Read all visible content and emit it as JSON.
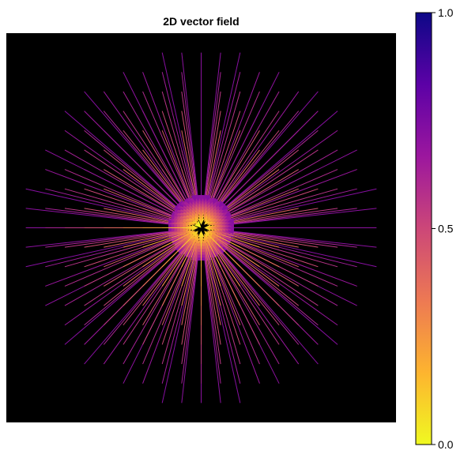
{
  "chart_data": {
    "type": "vector-field",
    "title": "2D vector field",
    "xlabel": "",
    "ylabel": "",
    "background": "#000000",
    "grid": false,
    "field": {
      "description": "radial field pointing inward toward origin",
      "x": [
        -4.5,
        -4.0,
        -3.5,
        -3.0,
        -2.5,
        -2.0,
        -1.5,
        -1.0,
        -0.5,
        0.0,
        0.5,
        1.0,
        1.5,
        2.0,
        2.5,
        3.0,
        3.5,
        4.0,
        4.5
      ],
      "y": [
        -4.5,
        -4.0,
        -3.5,
        -3.0,
        -2.5,
        -2.0,
        -1.5,
        -1.0,
        -0.5,
        0.0,
        0.5,
        1.0,
        1.5,
        2.0,
        2.5,
        3.0,
        3.5,
        4.0,
        4.5
      ],
      "radius_limit": 4.7
    },
    "colorbar": {
      "colormap": "plasma",
      "reversed": true,
      "range": [
        0.0,
        1.0
      ],
      "ticks": [
        "0.0",
        "0.5",
        "1.0"
      ],
      "colors": [
        "#f0f921",
        "#fdb42f",
        "#ed7953",
        "#cc4778",
        "#9c179e",
        "#5c01a6",
        "#0d0887"
      ]
    }
  }
}
